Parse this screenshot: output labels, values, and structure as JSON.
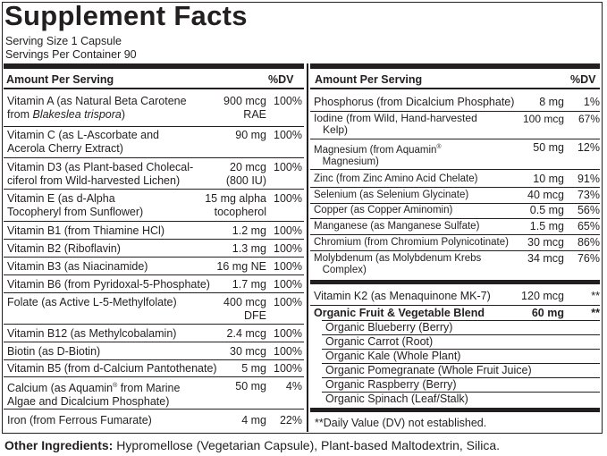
{
  "title": "Supplement Facts",
  "serving_size": "Serving Size 1 Capsule",
  "servings_per_container": "Servings Per Container 90",
  "headers": {
    "amount_per_serving": "Amount Per Serving",
    "dv": "%DV"
  },
  "left_rows": [
    {
      "name_1": "Vitamin A (as Natural Beta Carotene",
      "name_2_plain": "from ",
      "name_2_italic": "Blakeslea trispora",
      "name_2_end": ")",
      "amount_1": "900 mcg",
      "amount_2": "RAE",
      "dv": "100%"
    },
    {
      "name_1": "Vitamin C (as L-Ascorbate and",
      "name_2": "Acerola Cherry Extract)",
      "amount_1": "90 mg",
      "dv": "100%"
    },
    {
      "name_1": "Vitamin D3 (as Plant-based Cholecal-",
      "name_2": "ciferol from Wild-harvested Lichen)",
      "amount_1": "20 mcg",
      "amount_2": "(800 IU)",
      "dv": "100%"
    },
    {
      "name_1": "Vitamin E (as d-Alpha",
      "name_2": "Tocopheryl from Sunflower)",
      "amount_1": "15 mg alpha",
      "amount_2": "tocopherol",
      "dv": "100%"
    },
    {
      "name_1": "Vitamin B1 (from Thiamine HCl)",
      "amount_1": "1.2 mg",
      "dv": "100%"
    },
    {
      "name_1": "Vitamin B2 (Riboflavin)",
      "amount_1": "1.3 mg",
      "dv": "100%"
    },
    {
      "name_1": "Vitamin B3 (as Niacinamide)",
      "amount_1": "16 mg NE",
      "dv": "100%"
    },
    {
      "name_1": "Vitamin B6 (from Pyridoxal-5-Phosphate)",
      "amount_1": "1.7 mg",
      "dv": "100%"
    },
    {
      "name_1": "Folate (as Active L-5-Methylfolate)",
      "amount_1": "400 mcg",
      "amount_2": "DFE",
      "dv": "100%"
    },
    {
      "name_1": "Vitamin B12 (as Methylcobalamin)",
      "amount_1": "2.4 mcg",
      "dv": "100%"
    },
    {
      "name_1": "Biotin (as D-Biotin)",
      "amount_1": "30 mcg",
      "dv": "100%"
    },
    {
      "name_1": "Vitamin B5 (from d-Calcium Pantothenate)",
      "amount_1": "5 mg",
      "dv": "100%"
    },
    {
      "name_1_a": "Calcium (as Aquamin",
      "name_1_reg": "®",
      "name_1_b": " from Marine",
      "name_2": "Algae and Dicalcium Phosphate)",
      "amount_1": "50 mg",
      "dv": "4%"
    },
    {
      "name_1": "Iron (from Ferrous Fumarate)",
      "amount_1": "4 mg",
      "dv": "22%"
    }
  ],
  "right_rows": [
    {
      "name_1": "Phosphorus (from Dicalcium Phosphate)",
      "amount_1": "8 mg",
      "dv": "1%"
    },
    {
      "name_1": "Iodine (from Wild, Hand-harvested",
      "name_2": "Kelp)",
      "amount_1": "100 mcg",
      "dv": "67%"
    },
    {
      "name_1_a": "Magnesium (from Aquamin",
      "name_1_reg": "®",
      "name_2": "Magnesium)",
      "amount_1": "50 mg",
      "dv": "12%"
    },
    {
      "name_1": "Zinc (from Zinc Amino Acid Chelate)",
      "amount_1": "10 mg",
      "dv": "91%"
    },
    {
      "name_1": "Selenium (as Selenium Glycinate)",
      "amount_1": "40 mcg",
      "dv": "73%"
    },
    {
      "name_1": "Copper (as Copper Aminomin)",
      "amount_1": "0.5 mg",
      "dv": "56%"
    },
    {
      "name_1": "Manganese (as Manganese Sulfate)",
      "amount_1": "1.5 mg",
      "dv": "65%"
    },
    {
      "name_1": "Chromium (from Chromium Polynicotinate)",
      "amount_1": "30 mcg",
      "dv": "86%"
    },
    {
      "name_1": "Molybdenum (as Molybdenum Krebs",
      "name_2": "Complex)",
      "amount_1": "34 mcg",
      "dv": "76%"
    }
  ],
  "k2": {
    "name": "Vitamin K2 (as Menaquinone MK-7)",
    "amount": "120 mcg",
    "dv": "**"
  },
  "blend": {
    "name": "Organic Fruit & Vegetable Blend",
    "amount": "60 mg",
    "dv": "**",
    "items": [
      "Organic Blueberry (Berry)",
      "Organic Carrot (Root)",
      "Organic Kale (Whole Plant)",
      "Organic Pomegranate (Whole Fruit Juice)",
      "Organic Raspberry (Berry)",
      "Organic Spinach (Leaf/Stalk)"
    ]
  },
  "footnote": "**Daily Value (DV) not established.",
  "other_ingredients": {
    "label": "Other Ingredients:",
    "text": " Hypromellose (Vegetarian Capsule), Plant-based Maltodextrin, Silica."
  }
}
